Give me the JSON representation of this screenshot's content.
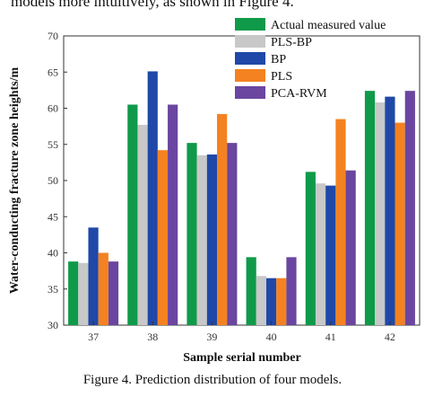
{
  "top_text": "models more intuitively, as shown in Figure 4.",
  "caption": "Figure 4.   Prediction distribution of four models.",
  "chart_data": {
    "type": "bar",
    "title": "",
    "xlabel": "Sample serial number",
    "ylabel": "Water-conducting fracture zone heights/m",
    "categories": [
      "37",
      "38",
      "39",
      "40",
      "41",
      "42"
    ],
    "ylim": [
      30,
      70
    ],
    "yticks": [
      30,
      35,
      40,
      45,
      50,
      55,
      60,
      65,
      70
    ],
    "grid": false,
    "legend_position": "top-right",
    "series": [
      {
        "name": "Actual measured value",
        "color": "#0f9a4a",
        "values": [
          38.8,
          60.5,
          55.2,
          39.4,
          51.2,
          62.4
        ]
      },
      {
        "name": "PLS-BP",
        "color": "#c8c8c8",
        "values": [
          38.6,
          57.7,
          53.5,
          36.8,
          49.6,
          60.8
        ]
      },
      {
        "name": "BP",
        "color": "#1f48a8",
        "values": [
          43.5,
          65.1,
          53.6,
          36.5,
          49.3,
          61.6
        ]
      },
      {
        "name": "PLS",
        "color": "#f58220",
        "values": [
          40.0,
          54.2,
          59.2,
          36.5,
          58.5,
          58.0
        ]
      },
      {
        "name": "PCA-RVM",
        "color": "#6a46a0",
        "values": [
          38.8,
          60.5,
          55.2,
          39.4,
          51.4,
          62.4
        ]
      }
    ]
  }
}
